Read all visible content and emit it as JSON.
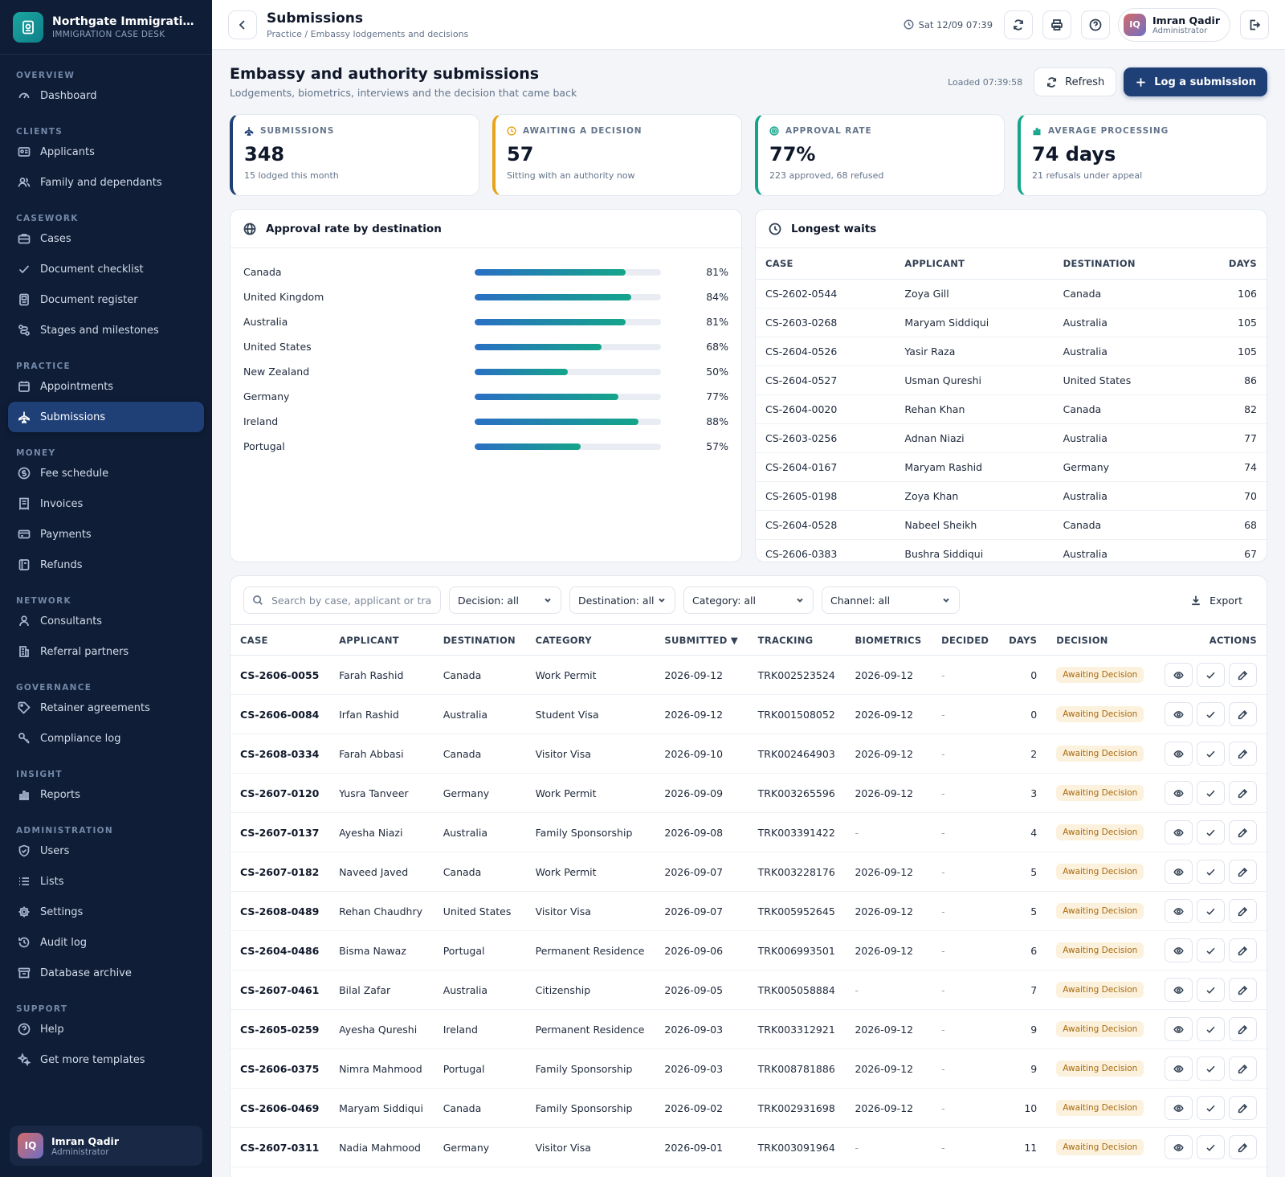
{
  "brand": {
    "name": "Northgate Immigration Advisors",
    "subtitle": "IMMIGRATION CASE DESK"
  },
  "nav": [
    {
      "section": "OVERVIEW",
      "items": [
        {
          "label": "Dashboard",
          "icon": "gauge-icon"
        }
      ]
    },
    {
      "section": "CLIENTS",
      "items": [
        {
          "label": "Applicants",
          "icon": "id-card-icon"
        },
        {
          "label": "Family and dependants",
          "icon": "users-icon"
        }
      ]
    },
    {
      "section": "CASEWORK",
      "items": [
        {
          "label": "Cases",
          "icon": "briefcase-icon"
        },
        {
          "label": "Document checklist",
          "icon": "check-icon"
        },
        {
          "label": "Document register",
          "icon": "document-icon"
        },
        {
          "label": "Stages and milestones",
          "icon": "stages-icon"
        }
      ]
    },
    {
      "section": "PRACTICE",
      "items": [
        {
          "label": "Appointments",
          "icon": "calendar-icon"
        },
        {
          "label": "Submissions",
          "icon": "plane-icon",
          "active": true
        }
      ]
    },
    {
      "section": "MONEY",
      "items": [
        {
          "label": "Fee schedule",
          "icon": "dollar-icon"
        },
        {
          "label": "Invoices",
          "icon": "receipt-icon"
        },
        {
          "label": "Payments",
          "icon": "card-icon"
        },
        {
          "label": "Refunds",
          "icon": "refund-icon"
        }
      ]
    },
    {
      "section": "NETWORK",
      "items": [
        {
          "label": "Consultants",
          "icon": "user-icon"
        },
        {
          "label": "Referral partners",
          "icon": "building-icon"
        }
      ]
    },
    {
      "section": "GOVERNANCE",
      "items": [
        {
          "label": "Retainer agreements",
          "icon": "tag-icon"
        },
        {
          "label": "Compliance log",
          "icon": "key-icon"
        }
      ]
    },
    {
      "section": "INSIGHT",
      "items": [
        {
          "label": "Reports",
          "icon": "bar-chart-icon"
        }
      ]
    },
    {
      "section": "ADMINISTRATION",
      "items": [
        {
          "label": "Users",
          "icon": "shield-icon"
        },
        {
          "label": "Lists",
          "icon": "list-icon"
        },
        {
          "label": "Settings",
          "icon": "gear-icon"
        },
        {
          "label": "Audit log",
          "icon": "history-icon"
        },
        {
          "label": "Database archive",
          "icon": "archive-icon"
        }
      ]
    },
    {
      "section": "SUPPORT",
      "items": [
        {
          "label": "Help",
          "icon": "help-icon"
        },
        {
          "label": "Get more templates",
          "icon": "sparkle-icon"
        }
      ]
    }
  ],
  "user": {
    "initials": "IQ",
    "name": "Imran Qadir",
    "role": "Administrator"
  },
  "topbar": {
    "title": "Submissions",
    "breadcrumb": "Practice / Embassy lodgements and decisions",
    "datetime": "Sat 12/09 07:39"
  },
  "header": {
    "title": "Embassy and authority submissions",
    "subtitle": "Lodgements, biometrics, interviews and the decision that came back",
    "loaded": "Loaded 07:39:58",
    "refresh_label": "Refresh",
    "primary_label": "Log a submission"
  },
  "kpis": [
    {
      "label": "SUBMISSIONS",
      "value": "348",
      "note": "15 lodged this month",
      "color": "#1f3f77",
      "icon": "plane-icon"
    },
    {
      "label": "AWAITING A DECISION",
      "value": "57",
      "note": "Sitting with an authority now",
      "color": "#e8a317",
      "icon": "clock-icon"
    },
    {
      "label": "APPROVAL RATE",
      "value": "77%",
      "note": "223 approved, 68 refused",
      "color": "#14a58a",
      "icon": "target-icon"
    },
    {
      "label": "AVERAGE PROCESSING",
      "value": "74 days",
      "note": "21 refusals under appeal",
      "color": "#14a58a",
      "icon": "bar-chart-icon"
    }
  ],
  "approval": {
    "title": "Approval rate by destination",
    "rows": [
      {
        "label": "Canada",
        "value": 81,
        "display": "81%"
      },
      {
        "label": "United Kingdom",
        "value": 84,
        "display": "84%"
      },
      {
        "label": "Australia",
        "value": 81,
        "display": "81%"
      },
      {
        "label": "United States",
        "value": 68,
        "display": "68%"
      },
      {
        "label": "New Zealand",
        "value": 50,
        "display": "50%"
      },
      {
        "label": "Germany",
        "value": 77,
        "display": "77%"
      },
      {
        "label": "Ireland",
        "value": 88,
        "display": "88%"
      },
      {
        "label": "Portugal",
        "value": 57,
        "display": "57%"
      }
    ]
  },
  "waits": {
    "title": "Longest waits",
    "columns": [
      "CASE",
      "APPLICANT",
      "DESTINATION",
      "DAYS"
    ],
    "rows": [
      [
        "CS-2602-0544",
        "Zoya Gill",
        "Canada",
        "106"
      ],
      [
        "CS-2603-0268",
        "Maryam Siddiqui",
        "Australia",
        "105"
      ],
      [
        "CS-2604-0526",
        "Yasir Raza",
        "Australia",
        "105"
      ],
      [
        "CS-2604-0527",
        "Usman Qureshi",
        "United States",
        "86"
      ],
      [
        "CS-2604-0020",
        "Rehan Khan",
        "Canada",
        "82"
      ],
      [
        "CS-2603-0256",
        "Adnan Niazi",
        "Australia",
        "77"
      ],
      [
        "CS-2604-0167",
        "Maryam Rashid",
        "Germany",
        "74"
      ],
      [
        "CS-2605-0198",
        "Zoya Khan",
        "Australia",
        "70"
      ],
      [
        "CS-2604-0528",
        "Nabeel Sheikh",
        "Canada",
        "68"
      ],
      [
        "CS-2606-0383",
        "Bushra Siddiqui",
        "Australia",
        "67"
      ]
    ]
  },
  "filters": {
    "search_placeholder": "Search by case, applicant or tracking",
    "decision": "Decision: all",
    "destination": "Destination: all",
    "category": "Category: all",
    "channel": "Channel: all",
    "export_label": "Export"
  },
  "submissions": {
    "columns": [
      "CASE",
      "APPLICANT",
      "DESTINATION",
      "CATEGORY",
      "SUBMITTED ▼",
      "TRACKING",
      "BIOMETRICS",
      "DECIDED",
      "DAYS",
      "DECISION",
      "ACTIONS"
    ],
    "rows": [
      [
        "CS-2606-0055",
        "Farah Rashid",
        "Canada",
        "Work Permit",
        "2026-09-12",
        "TRK002523524",
        "2026-09-12",
        "-",
        "0",
        "Awaiting Decision"
      ],
      [
        "CS-2606-0084",
        "Irfan Rashid",
        "Australia",
        "Student Visa",
        "2026-09-12",
        "TRK001508052",
        "2026-09-12",
        "-",
        "0",
        "Awaiting Decision"
      ],
      [
        "CS-2608-0334",
        "Farah Abbasi",
        "Canada",
        "Visitor Visa",
        "2026-09-10",
        "TRK002464903",
        "2026-09-12",
        "-",
        "2",
        "Awaiting Decision"
      ],
      [
        "CS-2607-0120",
        "Yusra Tanveer",
        "Germany",
        "Work Permit",
        "2026-09-09",
        "TRK003265596",
        "2026-09-12",
        "-",
        "3",
        "Awaiting Decision"
      ],
      [
        "CS-2607-0137",
        "Ayesha Niazi",
        "Australia",
        "Family Sponsorship",
        "2026-09-08",
        "TRK003391422",
        "-",
        "-",
        "4",
        "Awaiting Decision"
      ],
      [
        "CS-2607-0182",
        "Naveed Javed",
        "Canada",
        "Work Permit",
        "2026-09-07",
        "TRK003228176",
        "2026-09-12",
        "-",
        "5",
        "Awaiting Decision"
      ],
      [
        "CS-2608-0489",
        "Rehan Chaudhry",
        "United States",
        "Visitor Visa",
        "2026-09-07",
        "TRK005952645",
        "2026-09-12",
        "-",
        "5",
        "Awaiting Decision"
      ],
      [
        "CS-2604-0486",
        "Bisma Nawaz",
        "Portugal",
        "Permanent Residence",
        "2026-09-06",
        "TRK006993501",
        "2026-09-12",
        "-",
        "6",
        "Awaiting Decision"
      ],
      [
        "CS-2607-0461",
        "Bilal Zafar",
        "Australia",
        "Citizenship",
        "2026-09-05",
        "TRK005058884",
        "-",
        "-",
        "7",
        "Awaiting Decision"
      ],
      [
        "CS-2605-0259",
        "Ayesha Qureshi",
        "Ireland",
        "Permanent Residence",
        "2026-09-03",
        "TRK003312921",
        "2026-09-12",
        "-",
        "9",
        "Awaiting Decision"
      ],
      [
        "CS-2606-0375",
        "Nimra Mahmood",
        "Portugal",
        "Family Sponsorship",
        "2026-09-03",
        "TRK008781886",
        "2026-09-12",
        "-",
        "9",
        "Awaiting Decision"
      ],
      [
        "CS-2606-0469",
        "Maryam Siddiqui",
        "Canada",
        "Family Sponsorship",
        "2026-09-02",
        "TRK002931698",
        "2026-09-12",
        "-",
        "10",
        "Awaiting Decision"
      ],
      [
        "CS-2607-0311",
        "Nadia Mahmood",
        "Germany",
        "Visitor Visa",
        "2026-09-01",
        "TRK003091964",
        "-",
        "-",
        "11",
        "Awaiting Decision"
      ]
    ]
  }
}
